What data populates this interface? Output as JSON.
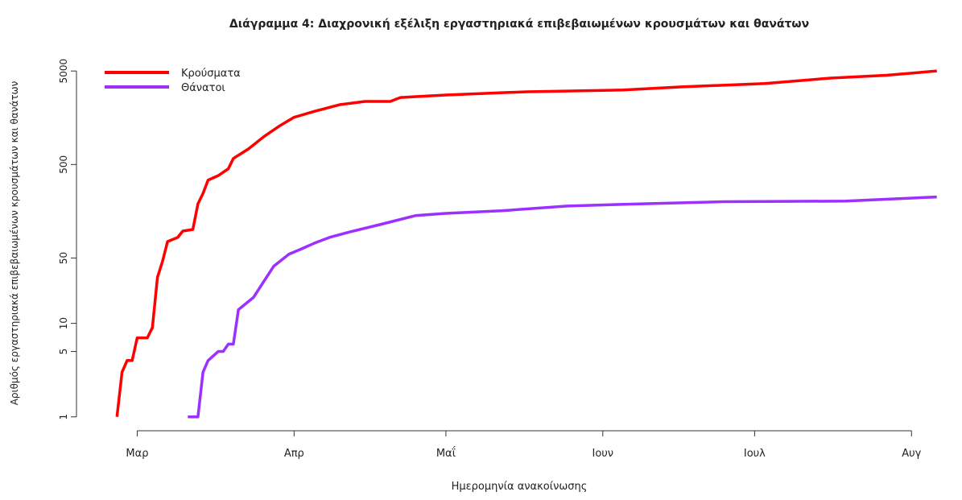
{
  "chart_data": {
    "type": "line",
    "title": "Διάγραμμα 4: Διαχρονική εξέλιξη εργαστηριακά επιβεβαιωμένων κρουσμάτων και θανάτων",
    "x_label": "Ημερομηνία ανακοίνωσης",
    "y_label": "Αριθμός εργαστηριακά επιβεβαιωμένων κρουσμάτων και θανάτων",
    "log_y": true,
    "legend": "top-left",
    "xlim": [
      -12,
      159
    ],
    "ylim": [
      0.71,
      7460
    ],
    "xticks": [
      {
        "value": 0,
        "label": "Μαρ"
      },
      {
        "value": 31,
        "label": "Απρ"
      },
      {
        "value": 61,
        "label": "Μαΐ"
      },
      {
        "value": 92,
        "label": "Ιουν"
      },
      {
        "value": 122,
        "label": "Ιουλ"
      },
      {
        "value": 153,
        "label": "Αυγ"
      }
    ],
    "yticks": [
      1,
      5,
      10,
      50,
      500,
      5000
    ],
    "series": [
      {
        "name": "Κρούσματα",
        "color": "#ff0000",
        "x": [
          -4,
          -3,
          -2,
          -1,
          0,
          2,
          3,
          4,
          5,
          6,
          8,
          9,
          11,
          12,
          13,
          14,
          16,
          18,
          19,
          22,
          25,
          28,
          31,
          35,
          40,
          45,
          50,
          52,
          61,
          77,
          96,
          108,
          124,
          137,
          148,
          158
        ],
        "values": [
          1,
          3,
          4,
          4,
          7,
          7,
          9,
          31,
          46,
          75,
          83,
          97,
          101,
          190,
          245,
          340,
          380,
          450,
          580,
          735,
          990,
          1280,
          1600,
          1850,
          2180,
          2360,
          2360,
          2600,
          2770,
          3000,
          3130,
          3390,
          3670,
          4200,
          4500,
          5000
        ]
      },
      {
        "name": "Θάνατοι",
        "color": "#9b30ff",
        "x": [
          10,
          12,
          13,
          14,
          16,
          17,
          18,
          19,
          20,
          23,
          25,
          27,
          30,
          32,
          35,
          38,
          42,
          48,
          55,
          61,
          72,
          85,
          100,
          116,
          140,
          158
        ],
        "values": [
          1,
          1,
          3,
          4,
          5,
          5,
          6,
          6,
          14,
          19,
          28,
          41,
          55,
          61,
          72,
          83,
          95,
          114,
          142,
          150,
          160,
          180,
          190,
          200,
          203,
          225
        ]
      }
    ]
  }
}
